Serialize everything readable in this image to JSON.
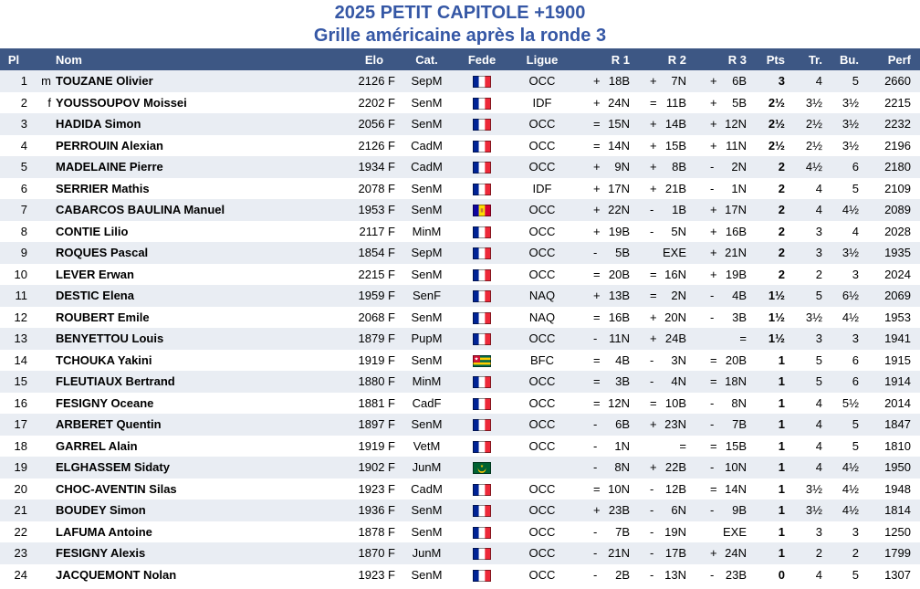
{
  "header": {
    "title": "2025 PETIT CAPITOLE +1900",
    "subtitle": "Grille américaine après la ronde 3"
  },
  "colors": {
    "title_text": "#3557A5",
    "header_bg": "#3D5784",
    "header_text": "#FFFFFF",
    "row_alt": "#E9EDF3",
    "row_bg": "#FFFFFF",
    "body_text": "#000000"
  },
  "table": {
    "columns": [
      "Pl",
      "",
      "Nom",
      "Elo",
      "Cat.",
      "Fede",
      "Ligue",
      "R 1",
      "R 2",
      "R 3",
      "Pts",
      "Tr.",
      "Bu.",
      "Perf",
      ""
    ],
    "rows": [
      {
        "pl": "1",
        "title": "m",
        "nom": "TOUZANE Olivier",
        "elo": "2126 F",
        "cat": "SepM",
        "fede": "FRA",
        "ligue": "OCC",
        "r1": [
          "+",
          "18B"
        ],
        "r2": [
          "+",
          "7N"
        ],
        "r3": [
          "+",
          "6B"
        ],
        "pts": "3",
        "tr": "4",
        "bu": "5",
        "perf": "2660"
      },
      {
        "pl": "2",
        "title": "f",
        "nom": "YOUSSOUPOV Moissei",
        "elo": "2202 F",
        "cat": "SenM",
        "fede": "FRA",
        "ligue": "IDF",
        "r1": [
          "+",
          "24N"
        ],
        "r2": [
          "=",
          "11B"
        ],
        "r3": [
          "+",
          "5B"
        ],
        "pts": "2½",
        "tr": "3½",
        "bu": "3½",
        "perf": "2215"
      },
      {
        "pl": "3",
        "title": "",
        "nom": "HADIDA Simon",
        "elo": "2056 F",
        "cat": "SenM",
        "fede": "FRA",
        "ligue": "OCC",
        "r1": [
          "=",
          "15N"
        ],
        "r2": [
          "+",
          "14B"
        ],
        "r3": [
          "+",
          "12N"
        ],
        "pts": "2½",
        "tr": "2½",
        "bu": "3½",
        "perf": "2232"
      },
      {
        "pl": "4",
        "title": "",
        "nom": "PERROUIN Alexian",
        "elo": "2126 F",
        "cat": "CadM",
        "fede": "FRA",
        "ligue": "OCC",
        "r1": [
          "=",
          "14N"
        ],
        "r2": [
          "+",
          "15B"
        ],
        "r3": [
          "+",
          "11N"
        ],
        "pts": "2½",
        "tr": "2½",
        "bu": "3½",
        "perf": "2196"
      },
      {
        "pl": "5",
        "title": "",
        "nom": "MADELAINE Pierre",
        "elo": "1934 F",
        "cat": "CadM",
        "fede": "FRA",
        "ligue": "OCC",
        "r1": [
          "+",
          "9N"
        ],
        "r2": [
          "+",
          "8B"
        ],
        "r3": [
          "-",
          "2N"
        ],
        "pts": "2",
        "tr": "4½",
        "bu": "6",
        "perf": "2180"
      },
      {
        "pl": "6",
        "title": "",
        "nom": "SERRIER Mathis",
        "elo": "2078 F",
        "cat": "SenM",
        "fede": "FRA",
        "ligue": "IDF",
        "r1": [
          "+",
          "17N"
        ],
        "r2": [
          "+",
          "21B"
        ],
        "r3": [
          "-",
          "1N"
        ],
        "pts": "2",
        "tr": "4",
        "bu": "5",
        "perf": "2109"
      },
      {
        "pl": "7",
        "title": "",
        "nom": "CABARCOS BAULINA Manuel",
        "elo": "1953 F",
        "cat": "SenM",
        "fede": "AND",
        "ligue": "OCC",
        "r1": [
          "+",
          "22N"
        ],
        "r2": [
          "-",
          "1B"
        ],
        "r3": [
          "+",
          "17N"
        ],
        "pts": "2",
        "tr": "4",
        "bu": "4½",
        "perf": "2089"
      },
      {
        "pl": "8",
        "title": "",
        "nom": "CONTIE Lilio",
        "elo": "2117 F",
        "cat": "MinM",
        "fede": "FRA",
        "ligue": "OCC",
        "r1": [
          "+",
          "19B"
        ],
        "r2": [
          "-",
          "5N"
        ],
        "r3": [
          "+",
          "16B"
        ],
        "pts": "2",
        "tr": "3",
        "bu": "4",
        "perf": "2028"
      },
      {
        "pl": "9",
        "title": "",
        "nom": "ROQUES Pascal",
        "elo": "1854 F",
        "cat": "SepM",
        "fede": "FRA",
        "ligue": "OCC",
        "r1": [
          "-",
          "5B"
        ],
        "r2": [
          "",
          "EXE"
        ],
        "r3": [
          "+",
          "21N"
        ],
        "pts": "2",
        "tr": "3",
        "bu": "3½",
        "perf": "1935"
      },
      {
        "pl": "10",
        "title": "",
        "nom": "LEVER Erwan",
        "elo": "2215 F",
        "cat": "SenM",
        "fede": "FRA",
        "ligue": "OCC",
        "r1": [
          "=",
          "20B"
        ],
        "r2": [
          "=",
          "16N"
        ],
        "r3": [
          "+",
          "19B"
        ],
        "pts": "2",
        "tr": "2",
        "bu": "3",
        "perf": "2024"
      },
      {
        "pl": "11",
        "title": "",
        "nom": "DESTIC Elena",
        "elo": "1959 F",
        "cat": "SenF",
        "fede": "FRA",
        "ligue": "NAQ",
        "r1": [
          "+",
          "13B"
        ],
        "r2": [
          "=",
          "2N"
        ],
        "r3": [
          "-",
          "4B"
        ],
        "pts": "1½",
        "tr": "5",
        "bu": "6½",
        "perf": "2069"
      },
      {
        "pl": "12",
        "title": "",
        "nom": "ROUBERT Emile",
        "elo": "2068 F",
        "cat": "SenM",
        "fede": "FRA",
        "ligue": "NAQ",
        "r1": [
          "=",
          "16B"
        ],
        "r2": [
          "+",
          "20N"
        ],
        "r3": [
          "-",
          "3B"
        ],
        "pts": "1½",
        "tr": "3½",
        "bu": "4½",
        "perf": "1953"
      },
      {
        "pl": "13",
        "title": "",
        "nom": "BENYETTOU Louis",
        "elo": "1879 F",
        "cat": "PupM",
        "fede": "FRA",
        "ligue": "OCC",
        "r1": [
          "-",
          "11N"
        ],
        "r2": [
          "+",
          "24B"
        ],
        "r3": [
          "",
          "="
        ],
        "pts": "1½",
        "tr": "3",
        "bu": "3",
        "perf": "1941"
      },
      {
        "pl": "14",
        "title": "",
        "nom": "TCHOUKA Yakini",
        "elo": "1919 F",
        "cat": "SenM",
        "fede": "TOG",
        "ligue": "BFC",
        "r1": [
          "=",
          "4B"
        ],
        "r2": [
          "-",
          "3N"
        ],
        "r3": [
          "=",
          "20B"
        ],
        "pts": "1",
        "tr": "5",
        "bu": "6",
        "perf": "1915"
      },
      {
        "pl": "15",
        "title": "",
        "nom": "FLEUTIAUX Bertrand",
        "elo": "1880 F",
        "cat": "MinM",
        "fede": "FRA",
        "ligue": "OCC",
        "r1": [
          "=",
          "3B"
        ],
        "r2": [
          "-",
          "4N"
        ],
        "r3": [
          "=",
          "18N"
        ],
        "pts": "1",
        "tr": "5",
        "bu": "6",
        "perf": "1914"
      },
      {
        "pl": "16",
        "title": "",
        "nom": "FESIGNY Oceane",
        "elo": "1881 F",
        "cat": "CadF",
        "fede": "FRA",
        "ligue": "OCC",
        "r1": [
          "=",
          "12N"
        ],
        "r2": [
          "=",
          "10B"
        ],
        "r3": [
          "-",
          "8N"
        ],
        "pts": "1",
        "tr": "4",
        "bu": "5½",
        "perf": "2014"
      },
      {
        "pl": "17",
        "title": "",
        "nom": "ARBERET Quentin",
        "elo": "1897 F",
        "cat": "SenM",
        "fede": "FRA",
        "ligue": "OCC",
        "r1": [
          "-",
          "6B"
        ],
        "r2": [
          "+",
          "23N"
        ],
        "r3": [
          "-",
          "7B"
        ],
        "pts": "1",
        "tr": "4",
        "bu": "5",
        "perf": "1847"
      },
      {
        "pl": "18",
        "title": "",
        "nom": "GARREL Alain",
        "elo": "1919 F",
        "cat": "VetM",
        "fede": "FRA",
        "ligue": "OCC",
        "r1": [
          "-",
          "1N"
        ],
        "r2": [
          "",
          "="
        ],
        "r3": [
          "=",
          "15B"
        ],
        "pts": "1",
        "tr": "4",
        "bu": "5",
        "perf": "1810"
      },
      {
        "pl": "19",
        "title": "",
        "nom": "ELGHASSEM Sidaty",
        "elo": "1902 F",
        "cat": "JunM",
        "fede": "MTN",
        "ligue": "",
        "r1": [
          "-",
          "8N"
        ],
        "r2": [
          "+",
          "22B"
        ],
        "r3": [
          "-",
          "10N"
        ],
        "pts": "1",
        "tr": "4",
        "bu": "4½",
        "perf": "1950"
      },
      {
        "pl": "20",
        "title": "",
        "nom": "CHOC-AVENTIN Silas",
        "elo": "1923 F",
        "cat": "CadM",
        "fede": "FRA",
        "ligue": "OCC",
        "r1": [
          "=",
          "10N"
        ],
        "r2": [
          "-",
          "12B"
        ],
        "r3": [
          "=",
          "14N"
        ],
        "pts": "1",
        "tr": "3½",
        "bu": "4½",
        "perf": "1948"
      },
      {
        "pl": "21",
        "title": "",
        "nom": "BOUDEY Simon",
        "elo": "1936 F",
        "cat": "SenM",
        "fede": "FRA",
        "ligue": "OCC",
        "r1": [
          "+",
          "23B"
        ],
        "r2": [
          "-",
          "6N"
        ],
        "r3": [
          "-",
          "9B"
        ],
        "pts": "1",
        "tr": "3½",
        "bu": "4½",
        "perf": "1814"
      },
      {
        "pl": "22",
        "title": "",
        "nom": "LAFUMA Antoine",
        "elo": "1878 F",
        "cat": "SenM",
        "fede": "FRA",
        "ligue": "OCC",
        "r1": [
          "-",
          "7B"
        ],
        "r2": [
          "-",
          "19N"
        ],
        "r3": [
          "",
          "EXE"
        ],
        "pts": "1",
        "tr": "3",
        "bu": "3",
        "perf": "1250"
      },
      {
        "pl": "23",
        "title": "",
        "nom": "FESIGNY Alexis",
        "elo": "1870 F",
        "cat": "JunM",
        "fede": "FRA",
        "ligue": "OCC",
        "r1": [
          "-",
          "21N"
        ],
        "r2": [
          "-",
          "17B"
        ],
        "r3": [
          "+",
          "24N"
        ],
        "pts": "1",
        "tr": "2",
        "bu": "2",
        "perf": "1799"
      },
      {
        "pl": "24",
        "title": "",
        "nom": "JACQUEMONT Nolan",
        "elo": "1923 F",
        "cat": "SenM",
        "fede": "FRA",
        "ligue": "OCC",
        "r1": [
          "-",
          "2B"
        ],
        "r2": [
          "-",
          "13N"
        ],
        "r3": [
          "-",
          "23B"
        ],
        "pts": "0",
        "tr": "4",
        "bu": "5",
        "perf": "1307"
      }
    ]
  },
  "flags": {
    "FRA": {
      "name": "france-flag",
      "colors": [
        "#002395",
        "#FFFFFF",
        "#ED2939"
      ]
    },
    "AND": {
      "name": "andorra-flag",
      "colors": [
        "#10069F",
        "#FEDD00",
        "#D50032"
      ],
      "emblem": "#C77B2F"
    },
    "TOG": {
      "name": "togo-flag",
      "colors": [
        "#006A4E",
        "#FFCE00",
        "#D21034",
        "#FFFFFF"
      ]
    },
    "MTN": {
      "name": "mauritania-flag",
      "colors": [
        "#006233",
        "#FFC400"
      ]
    }
  }
}
